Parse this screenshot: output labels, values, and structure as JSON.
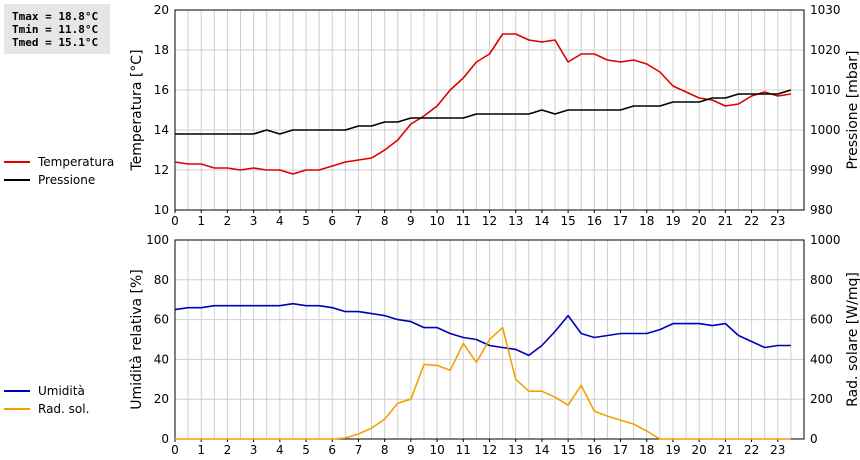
{
  "stats": [
    "Tmax = 18.8°C",
    "Tmin = 11.8°C",
    "Tmed = 15.1°C"
  ],
  "legend_top": [
    {
      "label": "Temperatura",
      "color": "#dd0000"
    },
    {
      "label": "Pressione",
      "color": "#000000"
    }
  ],
  "legend_bottom": [
    {
      "label": "Umidità",
      "color": "#0000bb"
    },
    {
      "label": "Rad. sol.",
      "color": "#f5a000"
    }
  ],
  "chart_data": [
    {
      "type": "line",
      "x_ticks": [
        "0",
        "1",
        "2",
        "3",
        "4",
        "5",
        "6",
        "7",
        "8",
        "9",
        "10",
        "11",
        "12",
        "13",
        "14",
        "15",
        "16",
        "17",
        "18",
        "19",
        "20",
        "21",
        "22",
        "23"
      ],
      "xlim": [
        0,
        24
      ],
      "ylabel": "Temperatura [°C]",
      "ylim": [
        10,
        20
      ],
      "y_ticks": [
        10,
        12,
        14,
        16,
        18,
        20
      ],
      "y2label": "Pressione [mbar]",
      "y2lim": [
        980,
        1030
      ],
      "y2_ticks": [
        980,
        990,
        1000,
        1010,
        1020,
        1030
      ],
      "grid": true,
      "series": [
        {
          "name": "Temperatura",
          "axis": "left",
          "color": "#dd0000",
          "x": [
            0,
            0.5,
            1,
            1.5,
            2,
            2.5,
            3,
            3.5,
            4,
            4.5,
            5,
            5.5,
            6,
            6.5,
            7,
            7.5,
            8,
            8.5,
            9,
            9.5,
            10,
            10.5,
            11,
            11.5,
            12,
            12.5,
            13,
            13.5,
            14,
            14.5,
            15,
            15.5,
            16,
            16.5,
            17,
            17.5,
            18,
            18.5,
            19,
            19.5,
            20,
            20.5,
            21,
            21.5,
            22,
            22.5,
            23,
            23.5
          ],
          "values": [
            12.4,
            12.3,
            12.3,
            12.1,
            12.1,
            12.0,
            12.1,
            12.0,
            12.0,
            11.8,
            12.0,
            12.0,
            12.2,
            12.4,
            12.5,
            12.6,
            13.0,
            13.5,
            14.3,
            14.7,
            15.2,
            16.0,
            16.6,
            17.4,
            17.8,
            18.8,
            18.8,
            18.5,
            18.4,
            18.5,
            17.4,
            17.8,
            17.8,
            17.5,
            17.4,
            17.5,
            17.3,
            16.9,
            16.2,
            15.9,
            15.6,
            15.5,
            15.2,
            15.3,
            15.7,
            15.9,
            15.7,
            15.8
          ]
        },
        {
          "name": "Pressione",
          "axis": "right",
          "color": "#000000",
          "x": [
            0,
            0.5,
            1,
            1.5,
            2,
            2.5,
            3,
            3.5,
            4,
            4.5,
            5,
            5.5,
            6,
            6.5,
            7,
            7.5,
            8,
            8.5,
            9,
            9.5,
            10,
            10.5,
            11,
            11.5,
            12,
            12.5,
            13,
            13.5,
            14,
            14.5,
            15,
            15.5,
            16,
            16.5,
            17,
            17.5,
            18,
            18.5,
            19,
            19.5,
            20,
            20.5,
            21,
            21.5,
            22,
            22.5,
            23,
            23.5
          ],
          "values": [
            999,
            999,
            999,
            999,
            999,
            999,
            999,
            1000,
            999,
            1000,
            1000,
            1000,
            1000,
            1000,
            1001,
            1001,
            1002,
            1002,
            1003,
            1003,
            1003,
            1003,
            1003,
            1004,
            1004,
            1004,
            1004,
            1004,
            1005,
            1004,
            1005,
            1005,
            1005,
            1005,
            1005,
            1006,
            1006,
            1006,
            1007,
            1007,
            1007,
            1008,
            1008,
            1009,
            1009,
            1009,
            1009,
            1010
          ]
        }
      ]
    },
    {
      "type": "line",
      "x_ticks": [
        "0",
        "1",
        "2",
        "3",
        "4",
        "5",
        "6",
        "7",
        "8",
        "9",
        "10",
        "11",
        "12",
        "13",
        "14",
        "15",
        "16",
        "17",
        "18",
        "19",
        "20",
        "21",
        "22",
        "23"
      ],
      "xlim": [
        0,
        24
      ],
      "ylabel": "Umidità relativa [%]",
      "ylim": [
        0,
        100
      ],
      "y_ticks": [
        0,
        20,
        40,
        60,
        80,
        100
      ],
      "y2label": "Rad. solare [W/mq]",
      "y2lim": [
        0,
        1000
      ],
      "y2_ticks": [
        0,
        200,
        400,
        600,
        800,
        1000
      ],
      "grid": true,
      "series": [
        {
          "name": "Umidità",
          "axis": "left",
          "color": "#0000bb",
          "x": [
            0,
            0.5,
            1,
            1.5,
            2,
            2.5,
            3,
            3.5,
            4,
            4.5,
            5,
            5.5,
            6,
            6.5,
            7,
            7.5,
            8,
            8.5,
            9,
            9.5,
            10,
            10.5,
            11,
            11.5,
            12,
            12.5,
            13,
            13.5,
            14,
            14.5,
            15,
            15.5,
            16,
            16.5,
            17,
            17.5,
            18,
            18.5,
            19,
            19.5,
            20,
            20.5,
            21,
            21.5,
            22,
            22.5,
            23,
            23.5
          ],
          "values": [
            65,
            66,
            66,
            67,
            67,
            67,
            67,
            67,
            67,
            68,
            67,
            67,
            66,
            64,
            64,
            63,
            62,
            60,
            59,
            56,
            56,
            53,
            51,
            50,
            47,
            46,
            45,
            42,
            47,
            54,
            62,
            53,
            51,
            52,
            53,
            53,
            53,
            55,
            58,
            58,
            58,
            57,
            58,
            52,
            49,
            46,
            47,
            47
          ]
        },
        {
          "name": "Rad. sol.",
          "axis": "right",
          "color": "#f5a000",
          "x": [
            0,
            0.5,
            1,
            1.5,
            2,
            2.5,
            3,
            3.5,
            4,
            4.5,
            5,
            5.5,
            6,
            6.5,
            7,
            7.5,
            8,
            8.5,
            9,
            9.5,
            10,
            10.5,
            11,
            11.5,
            12,
            12.5,
            13,
            13.5,
            14,
            14.5,
            15,
            15.5,
            16,
            16.5,
            17,
            17.5,
            18,
            18.5,
            19,
            19.5,
            20,
            20.5,
            21,
            21.5,
            22,
            22.5,
            23,
            23.5
          ],
          "values": [
            0,
            0,
            0,
            0,
            0,
            0,
            0,
            0,
            0,
            0,
            0,
            0,
            0,
            5,
            25,
            55,
            100,
            180,
            200,
            375,
            370,
            345,
            480,
            385,
            500,
            560,
            300,
            240,
            240,
            210,
            170,
            270,
            140,
            115,
            95,
            75,
            40,
            0,
            0,
            0,
            0,
            0,
            0,
            0,
            0,
            0,
            0,
            0
          ]
        }
      ]
    }
  ]
}
